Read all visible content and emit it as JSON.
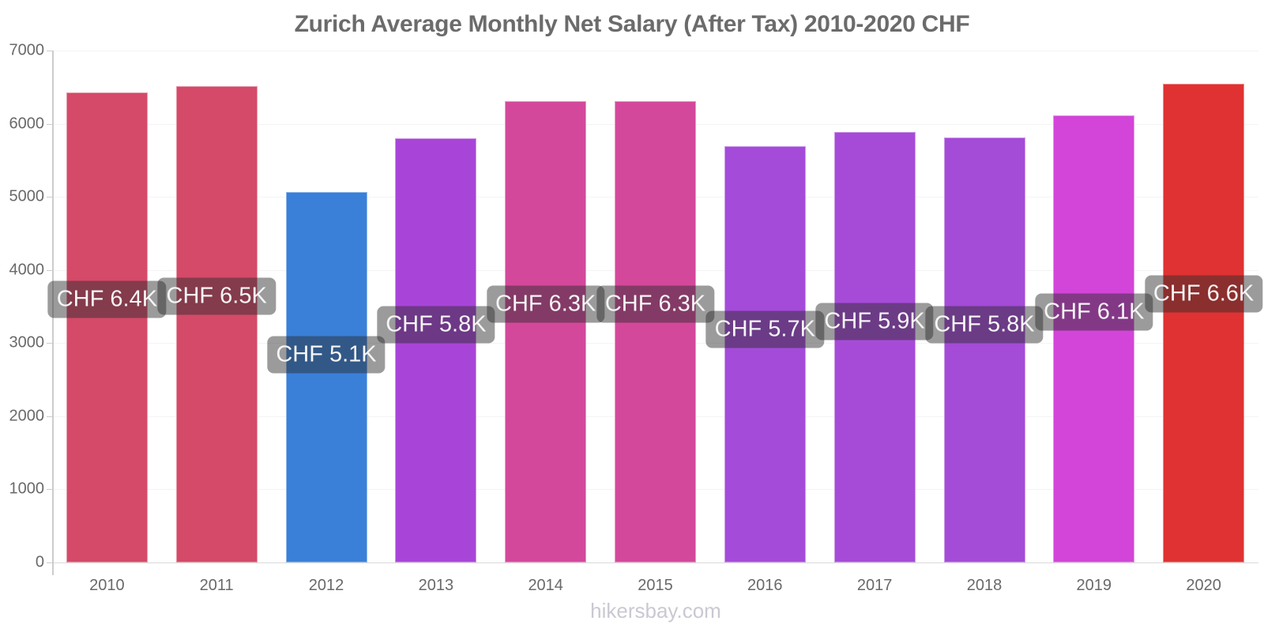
{
  "title": "Zurich Average Monthly Net Salary (After Tax) 2010-2020 CHF",
  "watermark": "hikersbay.com",
  "colors": {
    "title_text": "#6b6b6b",
    "tick_text": "#696969",
    "axis_line": "#cccccc",
    "gridline_faint": "#f4f4f4",
    "baseline": "#d9d9d9",
    "value_label_bg": "rgba(42,42,42,0.47)",
    "value_label_text": "#f5f5f5",
    "watermark_text": "#c9c9d2"
  },
  "chart_data": {
    "type": "bar",
    "title": "Zurich Average Monthly Net Salary (After Tax) 2010-2020 CHF",
    "xlabel": "",
    "ylabel": "",
    "categories": [
      "2010",
      "2011",
      "2012",
      "2013",
      "2014",
      "2015",
      "2016",
      "2017",
      "2018",
      "2019",
      "2020"
    ],
    "values": [
      6430,
      6510,
      5070,
      5800,
      6310,
      6310,
      5690,
      5890,
      5810,
      6110,
      6550
    ],
    "bar_labels": [
      "CHF 6.4K",
      "CHF 6.5K",
      "CHF 5.1K",
      "CHF 5.8K",
      "CHF 6.3K",
      "CHF 6.3K",
      "CHF 5.7K",
      "CHF 5.9K",
      "CHF 5.8K",
      "CHF 6.1K",
      "CHF 6.6K"
    ],
    "bar_colors": [
      "#d44a68",
      "#d44a68",
      "#3a80d9",
      "#a845d8",
      "#d4489c",
      "#d4489c",
      "#a44bda",
      "#a64bd8",
      "#a44bd8",
      "#d245d8",
      "#e03232"
    ],
    "ylim": [
      0,
      7000
    ],
    "yticks": [
      0,
      1000,
      2000,
      3000,
      4000,
      5000,
      6000,
      7000
    ],
    "grid": "horizontal-faint",
    "legend": "none",
    "currency": "CHF"
  }
}
